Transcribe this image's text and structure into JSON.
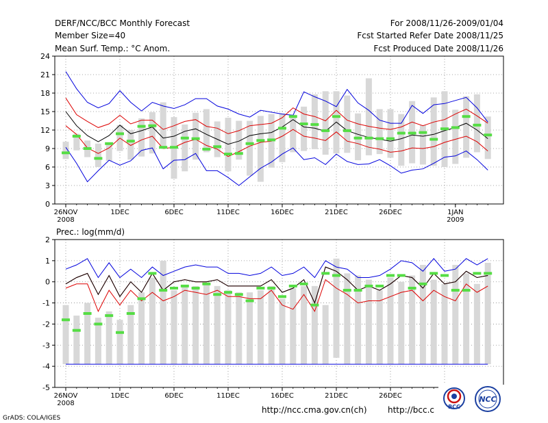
{
  "header": {
    "left": [
      "DERF/NCC/BCC Monthly Forecast",
      "Member Size=40",
      "Mean Surf. Temp.: °C Anom."
    ],
    "right": [
      "For 2008/11/26-2009/01/04",
      "Fcst Started Refer Date 2008/11/25",
      "Fcst Produced Date 2008/11/26"
    ]
  },
  "footer": {
    "credit": "GrADS: COLA/IGES",
    "url1": "http://ncc.cma.gov.cn(ch)",
    "url2": "http://bcc.c",
    "logo_bcc": "BCC",
    "logo_ncc": "NCC"
  },
  "colors": {
    "box": "#d8d8d8",
    "mean": "#55dd44",
    "ensemble": "#000000",
    "stddev": "#dd0000",
    "envelope": "#0000dd",
    "grid": "#888888"
  },
  "chart_data": [
    {
      "type": "box-line",
      "title": "Mean Surf. Temp.: °C Anom.",
      "xlabel": "",
      "ylabel": "",
      "ylim": [
        0,
        24
      ],
      "yticks": [
        0,
        3,
        6,
        9,
        12,
        15,
        18,
        21,
        24
      ],
      "x_tick_labels": [
        {
          "day": 0,
          "label": "26NOV",
          "sub": "2008"
        },
        {
          "day": 5,
          "label": "1DEC"
        },
        {
          "day": 10,
          "label": "6DEC"
        },
        {
          "day": 15,
          "label": "11DEC"
        },
        {
          "day": 20,
          "label": "16DEC"
        },
        {
          "day": 25,
          "label": "21DEC"
        },
        {
          "day": 30,
          "label": "26DEC"
        },
        {
          "day": 36,
          "label": "1JAN",
          "sub": "2009"
        }
      ],
      "days": 40,
      "box_low": [
        7.3,
        8.7,
        7.6,
        6,
        7,
        8.6,
        7.2,
        7.7,
        8.2,
        9.3,
        4.1,
        5.3,
        7.2,
        8.4,
        7.6,
        5.3,
        7.2,
        4.6,
        3.6,
        5.9,
        6.8,
        8.4,
        8.6,
        8.9,
        8,
        8.2,
        8.3,
        7.1,
        7.9,
        8.1,
        7.5,
        6.2,
        6.6,
        6.4,
        6.2,
        6,
        6.5,
        7.5,
        8.4,
        7.3
      ],
      "box_high": [
        10.1,
        11.4,
        10.3,
        9.8,
        10,
        12.8,
        12,
        13.9,
        14.9,
        16.5,
        14.1,
        12.9,
        14.8,
        15.4,
        13.4,
        14,
        13.5,
        13.5,
        14.3,
        14.6,
        14.7,
        14.5,
        15.8,
        17.8,
        18.3,
        18.3,
        17.6,
        14.7,
        20.4,
        15.4,
        15.4,
        14.6,
        16.7,
        12.8,
        17.3,
        18.3,
        15.3,
        17.5,
        17.8,
        14.2
      ],
      "mean": [
        8.3,
        11,
        9,
        7.4,
        9.8,
        11.4,
        10.2,
        12.6,
        12.7,
        9.2,
        9.2,
        10.7,
        10.6,
        8.9,
        9.3,
        8.1,
        8.2,
        9.8,
        10.3,
        10.4,
        12.3,
        14.2,
        13,
        12.9,
        11.9,
        14.2,
        11.9,
        10.7,
        10.7,
        10.6,
        10.6,
        11.5,
        11.5,
        11.6,
        10.5,
        12.2,
        12.4,
        14.2,
        12.8,
        11.2
      ],
      "series": [
        {
          "name": "max",
          "role": "envelope",
          "values": [
            21.5,
            18.7,
            16.5,
            15.6,
            16.3,
            18.4,
            16.5,
            15.1,
            16.5,
            15.9,
            15.5,
            16.1,
            17.1,
            17.1,
            15.9,
            15.4,
            14.6,
            14.1,
            15.2,
            14.9,
            14.6,
            14.4,
            18.2,
            17.4,
            16.7,
            15.8,
            18.6,
            16.4,
            15.2,
            13.6,
            13.1,
            13.1,
            16,
            14.7,
            16.1,
            16.3,
            16.8,
            17.3,
            15.6,
            13.3
          ]
        },
        {
          "name": "mean+std",
          "role": "stddev",
          "values": [
            17.2,
            14.5,
            13.4,
            12.4,
            13,
            14.4,
            13,
            13.6,
            13.6,
            12.1,
            12.7,
            13.4,
            13.7,
            12.6,
            12.3,
            11.4,
            11.9,
            12.7,
            12.9,
            13.1,
            14,
            15.6,
            14.6,
            14.2,
            13.5,
            15.2,
            13.6,
            13,
            12.6,
            12.3,
            12.1,
            12.5,
            13.3,
            12.7,
            13.3,
            13.7,
            14.6,
            15.4,
            14.3,
            13.1
          ]
        },
        {
          "name": "ensemble mean",
          "role": "ensemble",
          "values": [
            15,
            12.7,
            11.1,
            10.1,
            11.1,
            12.8,
            11.4,
            11.9,
            12.5,
            10.7,
            11,
            11.8,
            12.2,
            11.3,
            10.5,
            9.7,
            10.2,
            11.1,
            11.4,
            11.6,
            12.5,
            13.7,
            12.5,
            12.3,
            11.8,
            13.3,
            11.9,
            11.3,
            10.8,
            10.5,
            10.2,
            10.6,
            11.2,
            11,
            11.3,
            11.9,
            12.4,
            13.1,
            12,
            10.6
          ]
        },
        {
          "name": "mean-std",
          "role": "stddev",
          "values": [
            12.7,
            11.3,
            9.1,
            8.2,
            9.1,
            10.7,
            9.5,
            10.4,
            11,
            9,
            9.2,
            10,
            10.5,
            9.5,
            8.9,
            7.7,
            8.5,
            9.4,
            10,
            10.2,
            11,
            12.1,
            11,
            10.7,
            10.3,
            11.7,
            10.2,
            9.8,
            9.2,
            8.9,
            8.4,
            8.6,
            9.1,
            9,
            9.3,
            10,
            10.5,
            11,
            10.1,
            8.6
          ]
        },
        {
          "name": "min",
          "role": "envelope",
          "values": [
            9.2,
            6.6,
            3.6,
            5.4,
            7.1,
            6.3,
            7,
            8.7,
            9.1,
            5.7,
            7.1,
            7.2,
            8.2,
            5.4,
            5.4,
            4.3,
            3,
            4.4,
            5.8,
            6.8,
            8.1,
            9.1,
            7.2,
            7.5,
            6.4,
            8.1,
            6.9,
            6.4,
            6.5,
            7.2,
            6.2,
            5,
            5.5,
            5.7,
            6.6,
            7.6,
            7.8,
            8.6,
            7.2,
            5.5
          ]
        }
      ]
    },
    {
      "type": "box-line",
      "title": "Prec.: log(mm/d)",
      "xlabel": "",
      "ylabel": "",
      "ylim": [
        -5,
        2
      ],
      "yticks": [
        -5,
        -4,
        -3,
        -2,
        -1,
        0,
        1,
        2
      ],
      "x_tick_labels": [
        {
          "day": 0,
          "label": "26NOV",
          "sub": "2008"
        },
        {
          "day": 5,
          "label": "1DEC"
        },
        {
          "day": 10,
          "label": "6DEC"
        },
        {
          "day": 15,
          "label": "11DEC"
        },
        {
          "day": 20,
          "label": "16DEC"
        },
        {
          "day": 25,
          "label": "21DEC"
        },
        {
          "day": 30,
          "label": "26DEC"
        },
        {
          "day": 36,
          "label": "1JAN",
          "sub": "2009"
        }
      ],
      "days": 40,
      "box_low": [
        -3.9,
        -3.9,
        -3.9,
        -3.9,
        -3.9,
        -3.9,
        -3.9,
        -3.9,
        -3.9,
        -3.9,
        -3.9,
        -3.9,
        -3.9,
        -3.9,
        -3.9,
        -3.9,
        -3.9,
        -3.9,
        -3.9,
        -3.9,
        -3.9,
        -3.9,
        -3.9,
        -3.9,
        -3.9,
        -3.6,
        -3.9,
        -3.9,
        -3.9,
        -3.9,
        -3.9,
        -3.9,
        -3.9,
        -3.9,
        -3.9,
        -3.9,
        -3.9,
        -3.9,
        -3.9,
        -3.9
      ],
      "box_high": [
        -1.1,
        -1.6,
        -1,
        -1.7,
        -1.4,
        -1.8,
        -1.1,
        -0.5,
        0.2,
        1,
        -0.4,
        -0.2,
        -0.2,
        -0.1,
        -0.2,
        -0.4,
        -0.5,
        -0.5,
        -0.4,
        -0.2,
        -0.8,
        -0.3,
        -0.2,
        -0.2,
        -1.1,
        1.1,
        0.4,
        0.3,
        0.1,
        -0.4,
        0.2,
        0,
        0.3,
        0.8,
        0.1,
        -0.1,
        0.8,
        0.4,
        -0.1,
        0.9
      ],
      "mean": [
        -1.8,
        -2.3,
        -1.5,
        -2,
        -1.6,
        -2.4,
        -1.5,
        -0.8,
        0.4,
        -0.4,
        -0.3,
        -0.2,
        -0.3,
        -0.1,
        -0.6,
        -0.5,
        -0.6,
        -0.9,
        -0.3,
        -0.3,
        -0.7,
        -0.2,
        -0.1,
        -1.1,
        0.4,
        0.3,
        -0.4,
        -0.4,
        -0.2,
        -0.2,
        0.3,
        0.3,
        -0.3,
        -0.1,
        0.4,
        0.3,
        -0.4,
        -0.4,
        0.4,
        0.4
      ],
      "series": [
        {
          "name": "max",
          "role": "envelope",
          "values": [
            0.6,
            0.8,
            1.1,
            0.2,
            0.9,
            0.2,
            0.6,
            0.2,
            0.7,
            0.3,
            0.5,
            0.7,
            0.8,
            0.7,
            0.7,
            0.4,
            0.4,
            0.3,
            0.4,
            0.7,
            0.3,
            0.4,
            0.7,
            0.2,
            1,
            0.7,
            0.6,
            0.2,
            0.2,
            0.3,
            0.6,
            1,
            0.9,
            0.5,
            1.1,
            0.5,
            0.6,
            1.1,
            0.8,
            1.1
          ]
        },
        {
          "name": "mean+std",
          "role": "stddev",
          "values": [
            -0.1,
            0.2,
            0.4,
            -0.6,
            0.3,
            -0.7,
            0,
            -0.5,
            0.4,
            -0.4,
            0,
            0.1,
            0,
            0,
            0.1,
            -0.2,
            -0.2,
            -0.2,
            -0.2,
            0.1,
            -0.5,
            -0.3,
            0.1,
            -1,
            0.7,
            0.5,
            0.1,
            -0.4,
            -0.2,
            -0.4,
            -0.1,
            0.3,
            0.2,
            -0.3,
            0.4,
            -0.1,
            0,
            0.5,
            0.2,
            0.3
          ]
        },
        {
          "name": "ensemble mean",
          "role": "ensemble",
          "values": [
            -0.1,
            0.2,
            0.4,
            -0.6,
            0.3,
            -0.7,
            0,
            -0.5,
            0.4,
            -0.4,
            0,
            0.1,
            0,
            0,
            0.1,
            -0.2,
            -0.2,
            -0.2,
            -0.2,
            0.1,
            -0.5,
            -0.3,
            0.1,
            -1,
            0.7,
            0.5,
            0.1,
            -0.4,
            -0.2,
            -0.4,
            -0.1,
            0.3,
            0.2,
            -0.3,
            0.4,
            -0.1,
            0,
            0.5,
            0.2,
            0.3
          ]
        },
        {
          "name": "mean-std",
          "role": "stddev",
          "values": [
            -0.3,
            -0.1,
            -0.1,
            -1.4,
            -0.4,
            -1.1,
            -0.4,
            -0.9,
            -0.5,
            -0.9,
            -0.7,
            -0.4,
            -0.5,
            -0.6,
            -0.4,
            -0.7,
            -0.7,
            -0.8,
            -0.8,
            -0.4,
            -1.1,
            -1.3,
            -0.6,
            -1.4,
            0.1,
            -0.3,
            -0.6,
            -1,
            -0.9,
            -0.9,
            -0.7,
            -0.5,
            -0.4,
            -0.9,
            -0.4,
            -0.7,
            -0.9,
            -0.1,
            -0.5,
            -0.2
          ]
        },
        {
          "name": "min",
          "role": "envelope",
          "values": [
            -3.9,
            -3.9,
            -3.9,
            -3.9,
            -3.9,
            -3.9,
            -3.9,
            -3.9,
            -3.9,
            -3.9,
            -3.9,
            -3.9,
            -3.9,
            -3.9,
            -3.9,
            -3.9,
            -3.9,
            -3.9,
            -3.9,
            -3.9,
            -3.9,
            -3.9,
            -3.9,
            -3.9,
            -3.9,
            -3.9,
            -3.9,
            -3.9,
            -3.9,
            -3.9,
            -3.9,
            -3.9,
            -3.9,
            -3.9,
            -3.9,
            -3.9,
            -3.9,
            -3.9,
            -3.9,
            -3.9
          ]
        }
      ]
    }
  ]
}
